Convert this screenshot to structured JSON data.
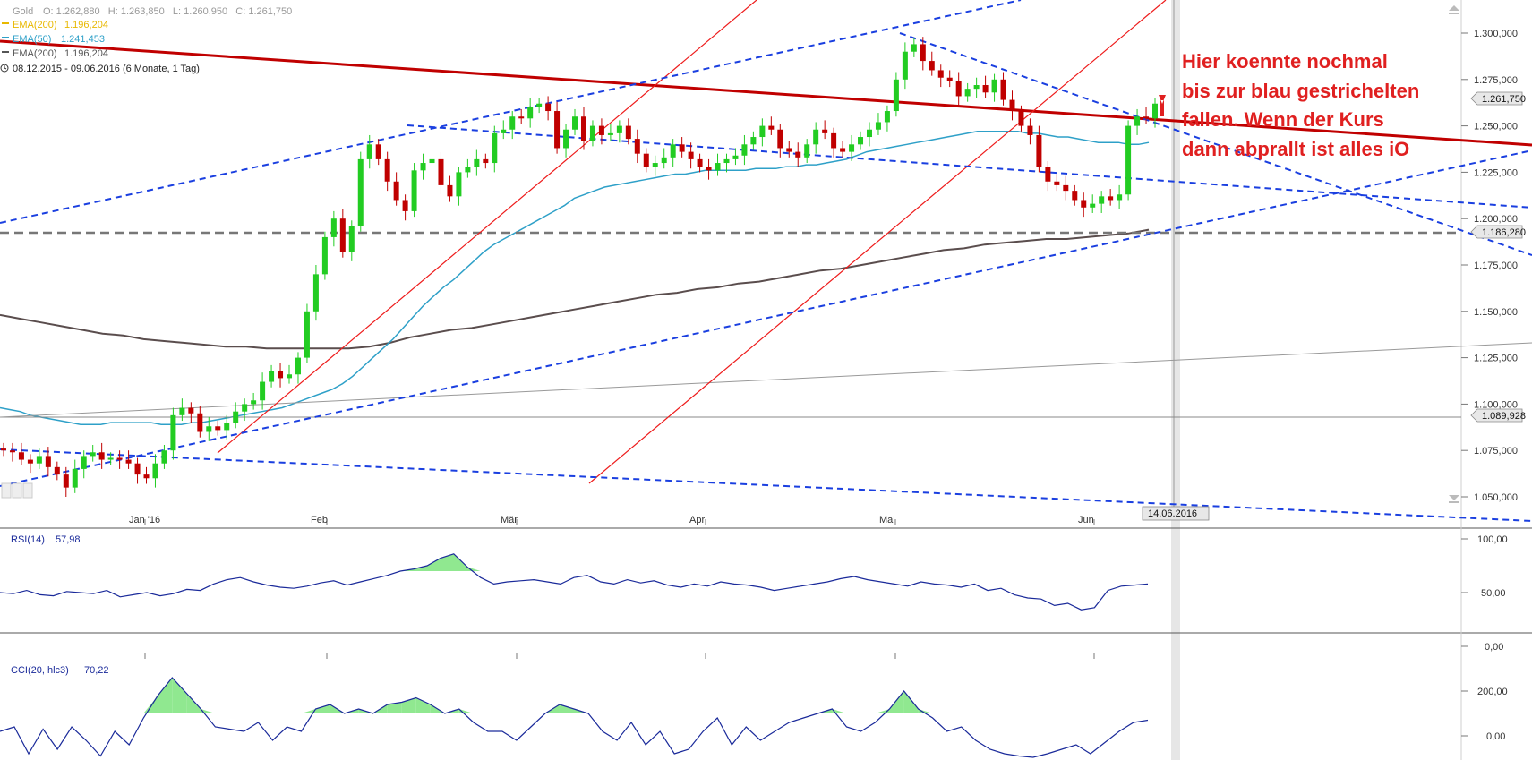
{
  "header": {
    "symbol": "Gold",
    "ohlc": "O: 1.262,880   H: 1.263,850   L: 1.260,950   C: 1.261,750",
    "legend": [
      {
        "label": "EMA(200)",
        "value": "1.196,204",
        "color": "#e8b800"
      },
      {
        "label": "EMA(50)",
        "value": "1.241,453",
        "color": "#2ea0c8"
      },
      {
        "label": "EMA(200)",
        "value": "1.196,204",
        "color": "#555555"
      }
    ],
    "date_range": "08.12.2015 - 09.06.2016 (6 Monate, 1 Tag)"
  },
  "annotation": {
    "lines": [
      "Hier koennte nochmal",
      "bis zur blau gestrichelten",
      "fallen. Wenn der Kurs",
      "dann abprallt ist alles iO"
    ],
    "color": "#e02020"
  },
  "price_axis": {
    "ticks": [
      "1.300,000",
      "1.275,000",
      "1.250,000",
      "1.225,000",
      "1.200,000",
      "1.175,000",
      "1.150,000",
      "1.125,000",
      "1.100,000",
      "1.075,000",
      "1.050,000"
    ],
    "tag_last": "1.261,750",
    "tag_hline": "1.186,280",
    "tag_low": "1.089,928"
  },
  "time_axis": {
    "months": [
      "Jan '16",
      "Feb",
      "Mär",
      "Apr",
      "Mai",
      "Jun"
    ],
    "cursor_date": "14.06.2016"
  },
  "rsi": {
    "label": "RSI(14)",
    "value": "57,98",
    "ticks": [
      "100,00",
      "50,00",
      "0,00"
    ]
  },
  "cci": {
    "label": "CCI(20, hlc3)",
    "value": "70,22",
    "ticks": [
      "200,00",
      "0,00"
    ]
  },
  "colors": {
    "up": "#22cc22",
    "down": "#c00000",
    "trend_red": "#c00000",
    "trend_blue": "#1a3fe0",
    "ema50": "#2ea0c8",
    "ema200": "#5a4d4d",
    "indicator": "#1a2a9a",
    "fill_green": "#90e890"
  },
  "chart_data": {
    "type": "line",
    "title": "Gold",
    "y_range": [
      1040,
      1310
    ],
    "series": [
      {
        "name": "Gold",
        "values": [
          1075,
          1074,
          1070,
          1068,
          1072,
          1066,
          1062,
          1055,
          1065,
          1072,
          1074,
          1070,
          1071,
          1070,
          1068,
          1062,
          1060,
          1068,
          1075,
          1094,
          1098,
          1095,
          1085,
          1088,
          1086,
          1090,
          1096,
          1100,
          1102,
          1112,
          1118,
          1114,
          1116,
          1125,
          1150,
          1170,
          1190,
          1200,
          1182,
          1196,
          1232,
          1240,
          1232,
          1220,
          1210,
          1204,
          1226,
          1230,
          1232,
          1218,
          1212,
          1225,
          1228,
          1232,
          1230,
          1246,
          1248,
          1255,
          1254,
          1260,
          1262,
          1258,
          1238,
          1248,
          1255,
          1242,
          1250,
          1245,
          1246,
          1250,
          1243,
          1235,
          1228,
          1230,
          1233,
          1240,
          1236,
          1232,
          1228,
          1226,
          1230,
          1232,
          1234,
          1240,
          1244,
          1250,
          1248,
          1238,
          1236,
          1233,
          1240,
          1248,
          1246,
          1238,
          1236,
          1240,
          1244,
          1248,
          1252,
          1258,
          1275,
          1290,
          1294,
          1285,
          1280,
          1276,
          1274,
          1266,
          1270,
          1272,
          1268,
          1275,
          1264,
          1258,
          1250,
          1245,
          1228,
          1220,
          1218,
          1215,
          1210,
          1206,
          1208,
          1212,
          1210,
          1213,
          1250,
          1255,
          1254,
          1262
        ]
      },
      {
        "name": "EMA(50)",
        "values": [
          1098,
          1097,
          1096,
          1094,
          1093,
          1092,
          1091,
          1090,
          1089,
          1089,
          1089,
          1090,
          1090,
          1090,
          1090,
          1090,
          1089,
          1089,
          1089,
          1090,
          1090,
          1091,
          1092,
          1093,
          1094,
          1095,
          1096,
          1097,
          1098,
          1100,
          1102,
          1104,
          1106,
          1108,
          1111,
          1115,
          1120,
          1125,
          1130,
          1135,
          1141,
          1147,
          1153,
          1158,
          1163,
          1167,
          1172,
          1177,
          1182,
          1186,
          1189,
          1192,
          1195,
          1198,
          1201,
          1204,
          1207,
          1211,
          1213,
          1215,
          1217,
          1218,
          1219,
          1220,
          1221,
          1222,
          1223,
          1224,
          1224,
          1225,
          1226,
          1226,
          1226,
          1226,
          1226,
          1227,
          1227,
          1227,
          1228,
          1228,
          1229,
          1229,
          1230,
          1231,
          1232,
          1234,
          1236,
          1237,
          1238,
          1239,
          1240,
          1241,
          1242,
          1243,
          1244,
          1245,
          1246,
          1247,
          1247,
          1247,
          1247,
          1247,
          1246,
          1246,
          1245,
          1244,
          1244,
          1243,
          1242,
          1241,
          1241,
          1241,
          1240,
          1240,
          1241
        ]
      },
      {
        "name": "EMA(200)",
        "values": [
          1148,
          1146,
          1144,
          1142,
          1140,
          1138,
          1137,
          1135,
          1134,
          1133,
          1132,
          1131,
          1131,
          1130,
          1130,
          1130,
          1130,
          1130,
          1131,
          1133,
          1136,
          1138,
          1140,
          1141,
          1143,
          1145,
          1147,
          1149,
          1151,
          1153,
          1155,
          1157,
          1159,
          1160,
          1162,
          1163,
          1165,
          1166,
          1168,
          1170,
          1172,
          1173,
          1175,
          1177,
          1179,
          1181,
          1183,
          1184,
          1186,
          1187,
          1188,
          1189,
          1189,
          1190,
          1191,
          1192,
          1194
        ]
      },
      {
        "name": "RSI(14)",
        "values": [
          50,
          49,
          52,
          48,
          47,
          51,
          50,
          49,
          52,
          46,
          48,
          50,
          47,
          49,
          53,
          52,
          58,
          62,
          64,
          60,
          57,
          55,
          54,
          56,
          59,
          61,
          57,
          60,
          63,
          66,
          70,
          72,
          75,
          82,
          86,
          74,
          64,
          58,
          60,
          61,
          62,
          60,
          58,
          64,
          66,
          60,
          58,
          62,
          59,
          61,
          57,
          55,
          58,
          56,
          60,
          58,
          57,
          55,
          52,
          54,
          56,
          58,
          60,
          63,
          65,
          62,
          60,
          58,
          56,
          60,
          58,
          57,
          55,
          58,
          52,
          54,
          48,
          45,
          44,
          38,
          40,
          34,
          36,
          52,
          56,
          57,
          58
        ]
      },
      {
        "name": "CCI(20, hlc3)",
        "values": [
          20,
          40,
          -80,
          30,
          -60,
          40,
          -20,
          -90,
          20,
          -40,
          80,
          180,
          260,
          190,
          120,
          40,
          30,
          20,
          60,
          -20,
          40,
          20,
          120,
          140,
          100,
          120,
          100,
          140,
          150,
          170,
          140,
          100,
          120,
          60,
          20,
          20,
          -20,
          40,
          100,
          140,
          120,
          100,
          20,
          -20,
          60,
          -40,
          20,
          -80,
          -60,
          20,
          80,
          -40,
          40,
          -20,
          20,
          60,
          80,
          100,
          120,
          40,
          20,
          60,
          120,
          200,
          120,
          80,
          20,
          40,
          -20,
          -60,
          -80,
          -90,
          -100,
          -80,
          -60,
          -40,
          -80,
          -30,
          20,
          60,
          70
        ]
      }
    ]
  }
}
